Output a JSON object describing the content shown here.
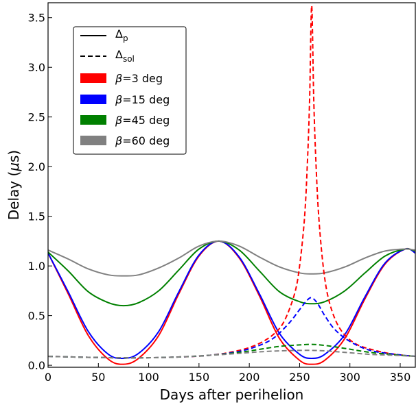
{
  "chart_data": {
    "type": "line",
    "title": "",
    "xlabel": "Days after perihelion",
    "ylabel_parts": [
      "Delay (",
      "μ",
      "s)"
    ],
    "xlim": [
      0,
      365
    ],
    "ylim": [
      -0.02,
      3.65
    ],
    "xticks": [
      0,
      50,
      100,
      150,
      200,
      250,
      300,
      350
    ],
    "xtick_labels": [
      "0",
      "50",
      "100",
      "150",
      "200",
      "250",
      "300",
      "350"
    ],
    "yticks": [
      0.0,
      0.5,
      1.0,
      1.5,
      2.0,
      2.5,
      3.0,
      3.5
    ],
    "ytick_labels": [
      "0.0",
      "0.5",
      "1.0",
      "1.5",
      "2.0",
      "2.5",
      "3.0",
      "3.5"
    ],
    "grid": false,
    "legend_position": "upper-left",
    "legend": {
      "styles": [
        {
          "symbol": "Δ",
          "sub": "p",
          "linestyle": "solid"
        },
        {
          "symbol": "Δ",
          "sub": "sol",
          "linestyle": "dashed"
        }
      ],
      "betas": [
        {
          "prefix": "β",
          "text": "=3 deg",
          "color": "#ff0000"
        },
        {
          "prefix": "β",
          "text": "=15 deg",
          "color": "#0000ff"
        },
        {
          "prefix": "β",
          "text": "=45 deg",
          "color": "#008000"
        },
        {
          "prefix": "β",
          "text": "=60 deg",
          "color": "#808080"
        }
      ]
    },
    "series": [
      {
        "beta": 3,
        "kind": "delta_p",
        "linestyle": "solid",
        "color": "#ff0000",
        "x": [
          0,
          20,
          40,
          60,
          75,
          90,
          110,
          130,
          150,
          170,
          190,
          210,
          230,
          250,
          262,
          275,
          295,
          315,
          335,
          355,
          365
        ],
        "y": [
          1.13,
          0.72,
          0.3,
          0.06,
          0.01,
          0.07,
          0.3,
          0.72,
          1.1,
          1.25,
          1.08,
          0.7,
          0.27,
          0.05,
          0.01,
          0.05,
          0.27,
          0.67,
          1.02,
          1.17,
          1.13
        ]
      },
      {
        "beta": 15,
        "kind": "delta_p",
        "linestyle": "solid",
        "color": "#0000ff",
        "x": [
          0,
          20,
          40,
          60,
          75,
          90,
          110,
          130,
          150,
          170,
          190,
          210,
          230,
          250,
          262,
          275,
          295,
          315,
          335,
          355,
          365
        ],
        "y": [
          1.13,
          0.74,
          0.34,
          0.11,
          0.07,
          0.12,
          0.34,
          0.74,
          1.11,
          1.25,
          1.09,
          0.72,
          0.32,
          0.11,
          0.07,
          0.11,
          0.31,
          0.69,
          1.03,
          1.17,
          1.13
        ]
      },
      {
        "beta": 45,
        "kind": "delta_p",
        "linestyle": "solid",
        "color": "#008000",
        "x": [
          0,
          20,
          40,
          60,
          75,
          90,
          110,
          130,
          150,
          170,
          190,
          210,
          230,
          250,
          262,
          275,
          295,
          315,
          335,
          355,
          365
        ],
        "y": [
          1.14,
          0.95,
          0.74,
          0.63,
          0.6,
          0.63,
          0.75,
          0.96,
          1.17,
          1.25,
          1.16,
          0.95,
          0.74,
          0.64,
          0.62,
          0.64,
          0.75,
          0.93,
          1.1,
          1.17,
          1.15
        ]
      },
      {
        "beta": 60,
        "kind": "delta_p",
        "linestyle": "solid",
        "color": "#808080",
        "x": [
          0,
          20,
          40,
          60,
          75,
          90,
          110,
          130,
          150,
          170,
          190,
          210,
          230,
          250,
          262,
          275,
          295,
          315,
          335,
          355,
          365
        ],
        "y": [
          1.16,
          1.07,
          0.97,
          0.91,
          0.9,
          0.91,
          0.98,
          1.08,
          1.2,
          1.25,
          1.2,
          1.09,
          0.99,
          0.93,
          0.92,
          0.93,
          0.99,
          1.08,
          1.15,
          1.17,
          1.16
        ]
      },
      {
        "beta": 3,
        "kind": "delta_sol",
        "linestyle": "dashed",
        "color": "#ff0000",
        "x": [
          0,
          40,
          80,
          120,
          160,
          190,
          210,
          225,
          235,
          245,
          250,
          255,
          258,
          260,
          262,
          264,
          266,
          269,
          274,
          280,
          290,
          305,
          325,
          345,
          365
        ],
        "y": [
          0.09,
          0.08,
          0.075,
          0.08,
          0.1,
          0.15,
          0.22,
          0.32,
          0.45,
          0.72,
          1.0,
          1.5,
          2.1,
          2.7,
          3.62,
          2.7,
          2.1,
          1.5,
          0.95,
          0.62,
          0.37,
          0.22,
          0.15,
          0.11,
          0.09
        ]
      },
      {
        "beta": 15,
        "kind": "delta_sol",
        "linestyle": "dashed",
        "color": "#0000ff",
        "x": [
          0,
          40,
          80,
          120,
          160,
          190,
          210,
          225,
          240,
          250,
          257,
          262,
          268,
          275,
          285,
          300,
          320,
          345,
          365
        ],
        "y": [
          0.09,
          0.08,
          0.075,
          0.08,
          0.1,
          0.14,
          0.2,
          0.28,
          0.43,
          0.56,
          0.65,
          0.68,
          0.62,
          0.5,
          0.36,
          0.24,
          0.15,
          0.11,
          0.09
        ]
      },
      {
        "beta": 45,
        "kind": "delta_sol",
        "linestyle": "dashed",
        "color": "#008000",
        "x": [
          0,
          40,
          80,
          120,
          160,
          190,
          210,
          230,
          250,
          262,
          275,
          295,
          320,
          345,
          365
        ],
        "y": [
          0.09,
          0.08,
          0.075,
          0.08,
          0.1,
          0.13,
          0.16,
          0.19,
          0.205,
          0.21,
          0.2,
          0.17,
          0.13,
          0.105,
          0.09
        ]
      },
      {
        "beta": 60,
        "kind": "delta_sol",
        "linestyle": "dashed",
        "color": "#808080",
        "x": [
          0,
          40,
          80,
          120,
          160,
          190,
          210,
          230,
          250,
          262,
          275,
          295,
          320,
          345,
          365
        ],
        "y": [
          0.09,
          0.08,
          0.075,
          0.08,
          0.1,
          0.12,
          0.135,
          0.145,
          0.15,
          0.15,
          0.145,
          0.13,
          0.11,
          0.1,
          0.09
        ]
      }
    ]
  }
}
